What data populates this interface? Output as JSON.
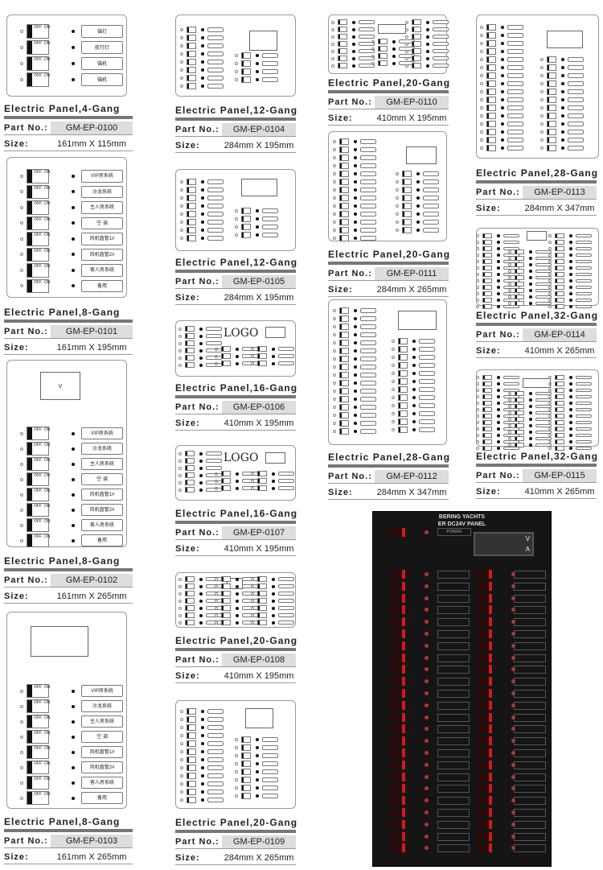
{
  "labels": {
    "part_no": "Part No.:",
    "size": "Size:"
  },
  "products": [
    {
      "title": "Electric Panel,4-Gang",
      "part_no": "GM-EP-0100",
      "size": "161mm X 115mm",
      "circuits": [
        "锚灯",
        "航行灯",
        "锚机",
        "锚机"
      ]
    },
    {
      "title": "Electric Panel,8-Gang",
      "part_no": "GM-EP-0101",
      "size": "161mm X 195mm",
      "circuits": [
        "VIP房系统",
        "沙龙系统",
        "主人房系统",
        "空 调",
        "风机盘管1#",
        "风机盘管2#",
        "客人房系统",
        "备用"
      ]
    },
    {
      "title": "Electric Panel,8-Gang",
      "part_no": "GM-EP-0102",
      "size": "161mm X 265mm",
      "display": "V",
      "circuits": [
        "VIP房系统",
        "沙龙系统",
        "主人房系统",
        "空 调",
        "风机盘管1#",
        "风机盘管2#",
        "客人房系统",
        "备用"
      ]
    },
    {
      "title": "Electric Panel,8-Gang",
      "part_no": "GM-EP-0103",
      "size": "161mm X 265mm",
      "circuits": [
        "VIP房系统",
        "沙龙系统",
        "主人房系统",
        "空 调",
        "风机盘管1#",
        "风机盘管2#",
        "客人房系统",
        "备用"
      ]
    },
    {
      "title": "Electric Panel,12-Gang",
      "part_no": "GM-EP-0104",
      "size": "284mm X 195mm"
    },
    {
      "title": "Electric Panel,12-Gang",
      "part_no": "GM-EP-0105",
      "size": "284mm X 195mm"
    },
    {
      "title": "Electric Panel,16-Gang",
      "part_no": "GM-EP-0106",
      "size": "410mm X 195mm",
      "logo": "LOGO"
    },
    {
      "title": "Electric Panel,16-Gang",
      "part_no": "GM-EP-0107",
      "size": "410mm X 195mm",
      "logo": "LOGO"
    },
    {
      "title": "Electric Panel,20-Gang",
      "part_no": "GM-EP-0108",
      "size": "410mm X 195mm"
    },
    {
      "title": "Electric Panel,20-Gang",
      "part_no": "GM-EP-0109",
      "size": "284mm X 265mm"
    },
    {
      "title": "Electric Panel,20-Gang",
      "part_no": "GM-EP-0110",
      "size": "410mm X 195mm"
    },
    {
      "title": "Electric Panel,20-Gang",
      "part_no": "GM-EP-0111",
      "size": "284mm X 265mm"
    },
    {
      "title": "Electric Panel,28-Gang",
      "part_no": "GM-EP-0112",
      "size": "284mm X 347mm"
    },
    {
      "title": "Electric Panel,28-Gang",
      "part_no": "GM-EP-0113",
      "size": "284mm X 347mm"
    },
    {
      "title": "Electric Panel,32-Gang",
      "part_no": "GM-EP-0114",
      "size": "410mm X 265mm"
    },
    {
      "title": "Electric Panel,32-Gang",
      "part_no": "GM-EP-0115",
      "size": "410mm X 265mm"
    }
  ],
  "switch_text": {
    "off": "OFF",
    "on": "ON"
  },
  "dark_panel": {
    "brand": "BERING YACHTS",
    "subtitle": "ER DC24V PANEL",
    "power": "POWER",
    "meter_v": "V",
    "meter_a": "A",
    "switch_color": "#d21a1a"
  }
}
